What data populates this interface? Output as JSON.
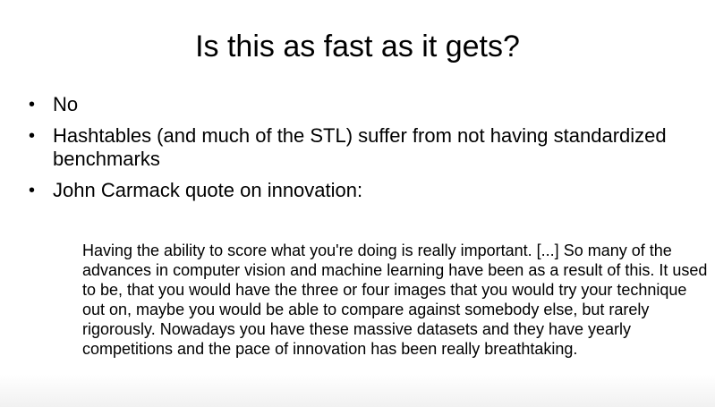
{
  "slide": {
    "title": "Is this as fast as it gets?",
    "bullets": [
      {
        "marker": "•",
        "text": "No"
      },
      {
        "marker": "•",
        "text": "Hashtables (and much of the STL) suffer from not having standardized benchmarks"
      },
      {
        "marker": "•",
        "text": "John Carmack quote on innovation:"
      }
    ],
    "quote": "Having the ability to score what you're doing is really important. [...] So many of the advances in computer vision and machine learning have been as a result of this. It used to be, that you would have the three or four images that you would try your technique out on, maybe you would be able to compare against somebody else, but rarely rigorously. Nowadays you have these massive datasets and they have yearly competitions and the pace of innovation has been really breathtaking."
  }
}
